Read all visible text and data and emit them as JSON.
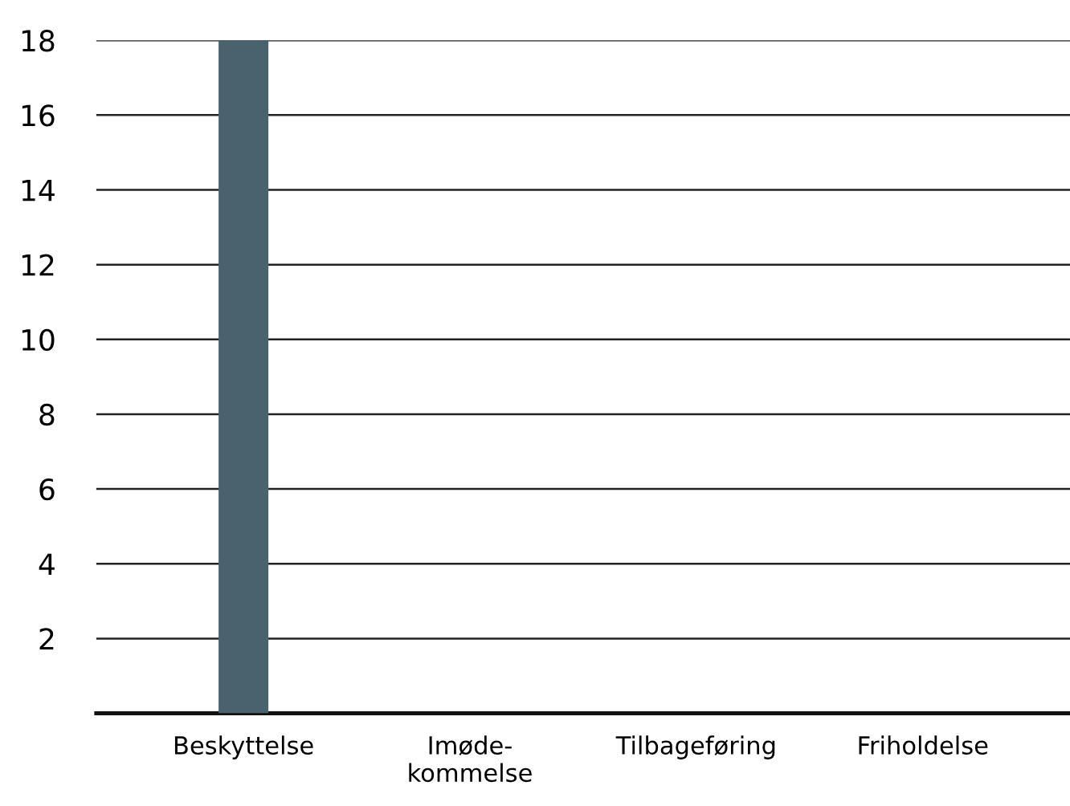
{
  "chart_data": {
    "type": "bar",
    "categories": [
      "Beskyttelse",
      "Imøde-\nkommelse",
      "Tilbageføring",
      "Friholdelse"
    ],
    "values": [
      18,
      0,
      0,
      0
    ],
    "color": "#48626e",
    "ylim": [
      0,
      18
    ],
    "yticks": [
      {
        "value": 0,
        "label": null
      },
      2,
      4,
      6,
      8,
      10,
      12,
      14,
      16,
      18
    ],
    "grid": "y"
  }
}
